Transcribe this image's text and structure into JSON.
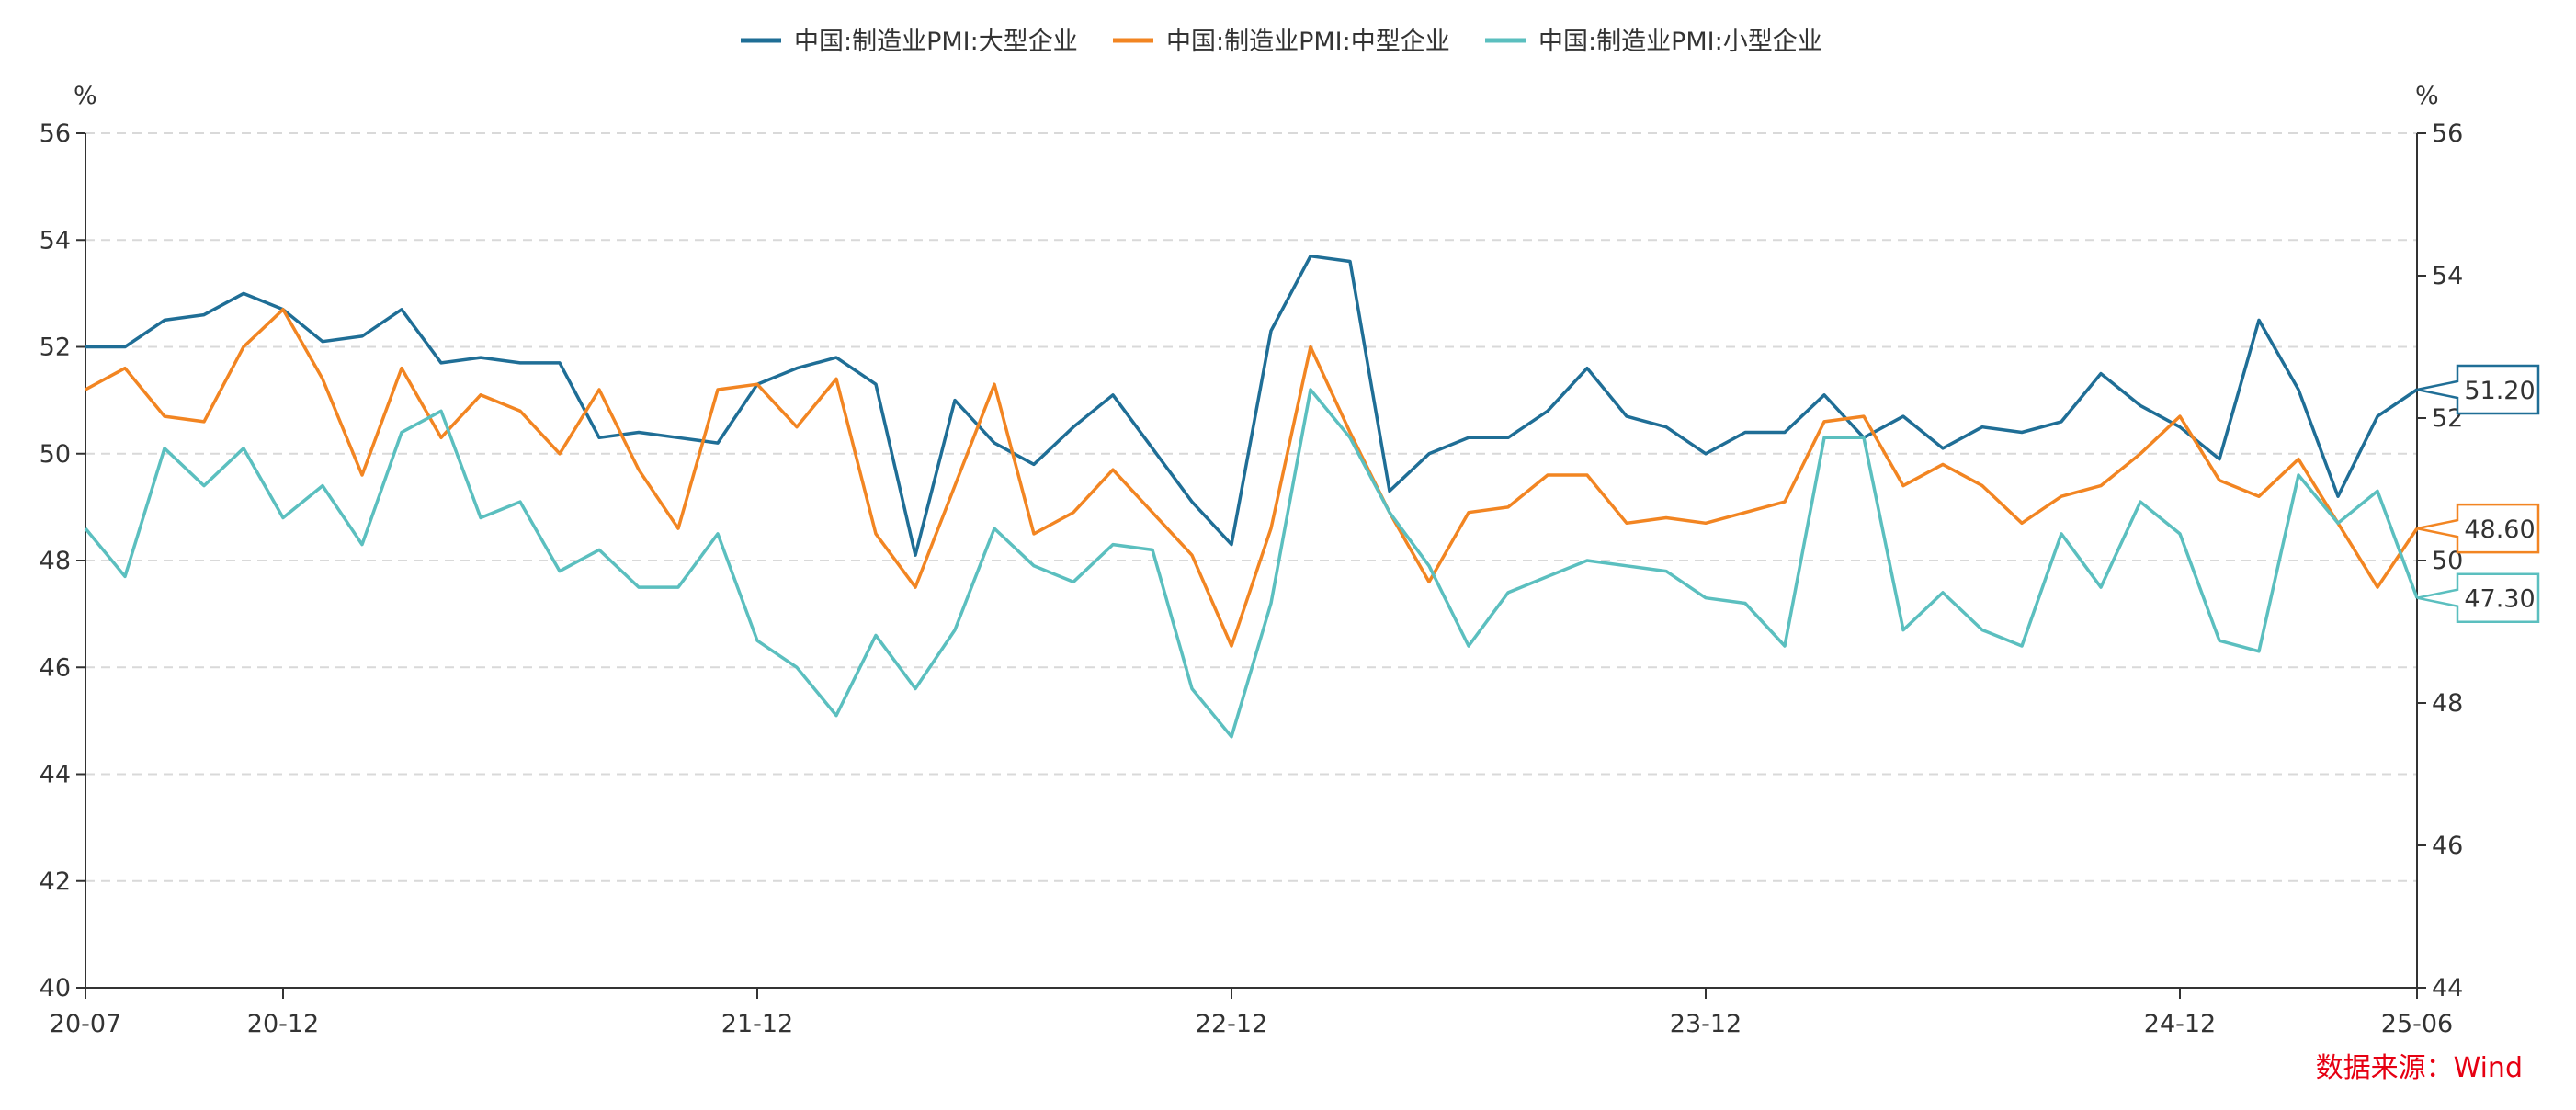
{
  "source_label": "数据来源：Wind",
  "colors": {
    "large": "#1f6e96",
    "medium": "#f28522",
    "small": "#5bbfbf",
    "source": "#e60012",
    "axis": "#333333",
    "grid": "#d9d9d9"
  },
  "chart_data": {
    "type": "line",
    "left_axis": {
      "unit": "%",
      "ylim": [
        40,
        56
      ],
      "ticks": [
        40,
        42,
        44,
        46,
        48,
        50,
        52,
        54,
        56
      ]
    },
    "right_axis": {
      "unit": "%",
      "ylim": [
        44,
        56
      ],
      "ticks": [
        44,
        46,
        48,
        50,
        52,
        54,
        56
      ]
    },
    "x_tick_labels": [
      "20-07",
      "20-12",
      "21-12",
      "22-12",
      "23-12",
      "24-12",
      "25-06"
    ],
    "x_start": "2020-07",
    "x_end": "2025-06",
    "grid": true,
    "legend_position": "top-center",
    "series": [
      {
        "name": "中国:制造业PMI:大型企业",
        "color": "#1f6e96",
        "last_label": "51.20",
        "values": [
          52.0,
          52.0,
          52.5,
          52.6,
          53.0,
          52.7,
          52.1,
          52.2,
          52.7,
          51.7,
          51.8,
          51.7,
          51.7,
          50.3,
          50.4,
          50.3,
          50.2,
          51.3,
          51.6,
          51.8,
          51.3,
          48.1,
          51.0,
          50.2,
          49.8,
          50.5,
          51.1,
          50.1,
          49.1,
          48.3,
          52.3,
          53.7,
          53.6,
          49.3,
          50.0,
          50.3,
          50.3,
          50.8,
          51.6,
          50.7,
          50.5,
          50.0,
          50.4,
          50.4,
          51.1,
          50.3,
          50.7,
          50.1,
          50.5,
          50.4,
          50.6,
          51.5,
          50.9,
          50.5,
          49.9,
          52.5,
          51.2,
          49.2,
          50.7,
          51.2
        ]
      },
      {
        "name": "中国:制造业PMI:中型企业",
        "color": "#f28522",
        "last_label": "48.60",
        "values": [
          51.2,
          51.6,
          50.7,
          50.6,
          52.0,
          52.7,
          51.4,
          49.6,
          51.6,
          50.3,
          51.1,
          50.8,
          50.0,
          51.2,
          49.7,
          48.6,
          51.2,
          51.3,
          50.5,
          51.4,
          48.5,
          47.5,
          49.4,
          51.3,
          48.5,
          48.9,
          49.7,
          48.9,
          48.1,
          46.4,
          48.6,
          52.0,
          50.4,
          48.9,
          47.6,
          48.9,
          49.0,
          49.6,
          49.6,
          48.7,
          48.8,
          48.7,
          48.9,
          49.1,
          50.6,
          50.7,
          49.4,
          49.8,
          49.4,
          48.7,
          49.2,
          49.4,
          50.0,
          50.7,
          49.5,
          49.2,
          49.9,
          48.7,
          47.5,
          48.6
        ]
      },
      {
        "name": "中国:制造业PMI:小型企业",
        "color": "#5bbfbf",
        "last_label": "47.30",
        "values": [
          48.6,
          47.7,
          50.1,
          49.4,
          50.1,
          48.8,
          49.4,
          48.3,
          50.4,
          50.8,
          48.8,
          49.1,
          47.8,
          48.2,
          47.5,
          47.5,
          48.5,
          46.5,
          46.0,
          45.1,
          46.6,
          45.6,
          46.7,
          48.6,
          47.9,
          47.6,
          48.3,
          48.2,
          45.6,
          44.7,
          47.2,
          51.2,
          50.3,
          48.9,
          47.9,
          46.4,
          47.4,
          47.7,
          48.0,
          47.9,
          47.8,
          47.3,
          47.2,
          46.4,
          50.3,
          50.3,
          46.7,
          47.4,
          46.7,
          46.4,
          48.5,
          47.5,
          49.1,
          48.5,
          46.5,
          46.3,
          49.6,
          48.7,
          49.3,
          47.3
        ]
      }
    ]
  }
}
